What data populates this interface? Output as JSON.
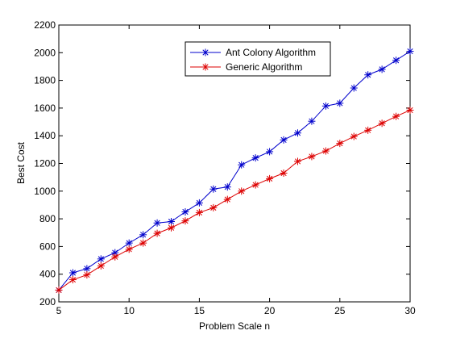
{
  "chart_data": {
    "type": "line",
    "xlabel": "Problem Scale n",
    "ylabel": "Best Cost",
    "xlim": [
      5,
      30
    ],
    "ylim": [
      200,
      2200
    ],
    "xticks": [
      5,
      10,
      15,
      20,
      25,
      30
    ],
    "yticks": [
      200,
      400,
      600,
      800,
      1000,
      1200,
      1400,
      1600,
      1800,
      2000,
      2200
    ],
    "grid": false,
    "legend_position": "top-center",
    "x": [
      5,
      6,
      7,
      8,
      9,
      10,
      11,
      12,
      13,
      14,
      15,
      16,
      17,
      18,
      19,
      20,
      21,
      22,
      23,
      24,
      25,
      26,
      27,
      28,
      29,
      30
    ],
    "series": [
      {
        "name": "Ant Colony Algorithm",
        "color": "#0000cc",
        "marker": "asterisk",
        "values": [
          285,
          410,
          440,
          510,
          555,
          625,
          685,
          770,
          780,
          850,
          915,
          1015,
          1030,
          1190,
          1240,
          1285,
          1370,
          1420,
          1505,
          1615,
          1635,
          1745,
          1840,
          1880,
          1945,
          2010
        ]
      },
      {
        "name": "Generic Algorithm",
        "color": "#dd0000",
        "marker": "asterisk",
        "values": [
          285,
          360,
          395,
          460,
          525,
          580,
          625,
          695,
          735,
          785,
          845,
          880,
          940,
          1000,
          1045,
          1090,
          1130,
          1215,
          1250,
          1290,
          1345,
          1395,
          1440,
          1490,
          1540,
          1585
        ]
      }
    ]
  }
}
